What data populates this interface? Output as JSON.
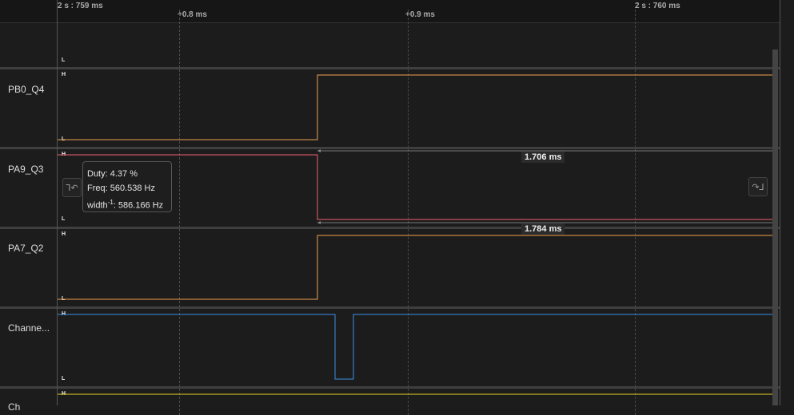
{
  "ruler": {
    "start": "2 s : 759 ms",
    "tick1": "+0.8 ms",
    "tick2": "+0.9 ms",
    "tick3": "2 s : 760 ms"
  },
  "channels": [
    {
      "name": "",
      "high": "",
      "low": "L"
    },
    {
      "name": "PB0_Q4",
      "high": "H",
      "low": "L",
      "color": "#f0a050"
    },
    {
      "name": "PA9_Q3",
      "high": "H",
      "low": "L",
      "color": "#ee6070"
    },
    {
      "name": "PA7_Q2",
      "high": "H",
      "low": "L",
      "color": "#f0a050"
    },
    {
      "name": "Channe...",
      "high": "H",
      "low": "L",
      "color": "#3d8fe8"
    },
    {
      "name": "Ch",
      "high": "H",
      "low": "",
      "color": "#e8d020"
    }
  ],
  "tooltip": {
    "duty": "Duty: 4.37 %",
    "freq": "Freq: 560.538 Hz",
    "width_pre": "width",
    "width_sup": "-1",
    "width_post": ": 586.166 Hz"
  },
  "measurements": {
    "m1": "1.706 ms",
    "m2": "1.784 ms"
  },
  "icons": {
    "prev_edge": "prev-edge-icon",
    "next_edge": "next-edge-icon"
  }
}
